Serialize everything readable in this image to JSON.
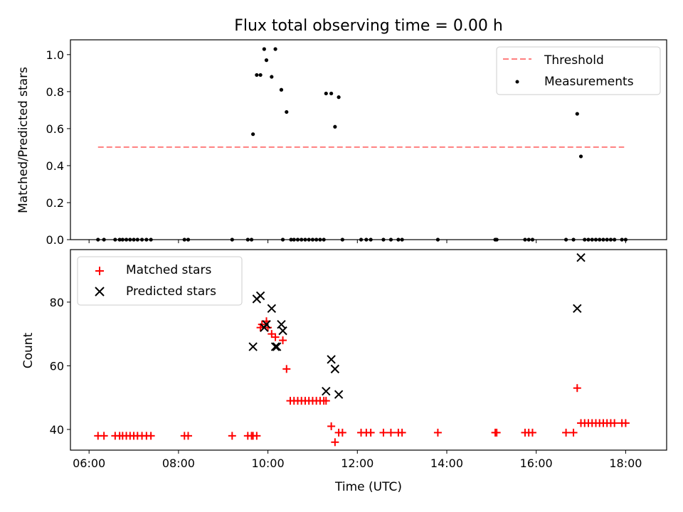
{
  "chart_data": [
    {
      "type": "scatter",
      "title": "Flux total observing time = 0.00 h",
      "xlabel": "",
      "ylabel": "Matched/Predicted stars",
      "xlim": [
        "05:35",
        "18:55"
      ],
      "ylim": [
        0.0,
        1.08
      ],
      "yticks": [
        0.0,
        0.2,
        0.4,
        0.6,
        0.8,
        1.0
      ],
      "ytick_labels": [
        "0.0",
        "0.2",
        "0.4",
        "0.6",
        "0.8",
        "1.0"
      ],
      "grid": false,
      "legend_position": "top-right",
      "series": [
        {
          "name": "Threshold",
          "kind": "line",
          "style": "dashed",
          "color": "#ff7f7f",
          "x": [
            "06:12",
            "17:58"
          ],
          "y": [
            0.5,
            0.5
          ]
        },
        {
          "name": "Measurements",
          "kind": "scatter",
          "marker": "dot",
          "color": "#000000",
          "x": [
            "06:12",
            "06:20",
            "06:35",
            "06:41",
            "06:45",
            "06:50",
            "06:55",
            "07:00",
            "07:05",
            "07:11",
            "07:17",
            "07:23",
            "08:08",
            "08:13",
            "09:12",
            "09:33",
            "09:38",
            "09:40",
            "09:45",
            "09:50",
            "09:55",
            "09:58",
            "10:05",
            "10:10",
            "10:18",
            "10:20",
            "10:25",
            "10:31",
            "10:35",
            "10:40",
            "10:45",
            "10:50",
            "10:55",
            "11:00",
            "11:05",
            "11:10",
            "11:15",
            "11:18",
            "11:25",
            "11:30",
            "11:35",
            "11:40",
            "12:05",
            "12:12",
            "12:18",
            "12:35",
            "12:45",
            "12:55",
            "13:00",
            "13:48",
            "15:05",
            "15:07",
            "15:45",
            "15:50",
            "15:55",
            "16:40",
            "16:50",
            "16:55",
            "17:00",
            "17:05",
            "17:10",
            "17:15",
            "17:20",
            "17:25",
            "17:30",
            "17:35",
            "17:40",
            "17:45",
            "17:55",
            "18:00"
          ],
          "y": [
            0,
            0,
            0,
            0,
            0,
            0,
            0,
            0,
            0,
            0,
            0,
            0,
            0,
            0,
            0,
            0,
            0,
            0.57,
            0.89,
            0.89,
            1.03,
            0.97,
            0.88,
            1.03,
            0.81,
            0,
            0.69,
            0,
            0,
            0,
            0,
            0,
            0,
            0,
            0,
            0,
            0,
            0.79,
            0.79,
            0.61,
            0.77,
            0,
            0,
            0,
            0,
            0,
            0,
            0,
            0,
            0,
            0,
            0,
            0,
            0,
            0,
            0,
            0,
            0.68,
            0.45,
            0,
            0,
            0,
            0,
            0,
            0,
            0,
            0,
            0,
            0,
            0
          ]
        }
      ]
    },
    {
      "type": "scatter",
      "title": "",
      "xlabel": "Time (UTC)",
      "ylabel": "Count",
      "xlim": [
        "05:35",
        "18:55"
      ],
      "ylim": [
        33.5,
        96.5
      ],
      "xticks": [
        "06:00",
        "08:00",
        "10:00",
        "12:00",
        "14:00",
        "16:00",
        "18:00"
      ],
      "yticks": [
        40,
        60,
        80
      ],
      "ytick_labels": [
        "40",
        "60",
        "80"
      ],
      "grid": false,
      "legend_position": "top-left",
      "series": [
        {
          "name": "Matched stars",
          "kind": "scatter",
          "marker": "plus",
          "color": "#ff0000",
          "x": [
            "06:12",
            "06:20",
            "06:35",
            "06:41",
            "06:45",
            "06:50",
            "06:55",
            "07:00",
            "07:05",
            "07:11",
            "07:17",
            "07:23",
            "08:08",
            "08:13",
            "09:12",
            "09:33",
            "09:38",
            "09:40",
            "09:45",
            "09:50",
            "09:52",
            "09:58",
            "10:00",
            "10:05",
            "10:10",
            "10:20",
            "10:25",
            "10:30",
            "10:35",
            "10:40",
            "10:45",
            "10:50",
            "10:55",
            "11:00",
            "11:05",
            "11:10",
            "11:15",
            "11:18",
            "11:25",
            "11:30",
            "11:35",
            "11:40",
            "12:05",
            "12:12",
            "12:18",
            "12:35",
            "12:45",
            "12:55",
            "13:00",
            "13:48",
            "15:05",
            "15:07",
            "15:45",
            "15:50",
            "15:55",
            "16:40",
            "16:50",
            "16:55",
            "17:00",
            "17:05",
            "17:10",
            "17:15",
            "17:20",
            "17:25",
            "17:30",
            "17:35",
            "17:40",
            "17:45",
            "17:55",
            "18:00"
          ],
          "y": [
            38,
            38,
            38,
            38,
            38,
            38,
            38,
            38,
            38,
            38,
            38,
            38,
            38,
            38,
            38,
            38,
            38,
            38,
            38,
            72,
            73,
            74,
            72,
            70,
            69,
            68,
            59,
            49,
            49,
            49,
            49,
            49,
            49,
            49,
            49,
            49,
            49,
            49,
            41,
            36,
            39,
            39,
            39,
            39,
            39,
            39,
            39,
            39,
            39,
            39,
            39,
            39,
            39,
            39,
            39,
            39,
            39,
            53,
            42,
            42,
            42,
            42,
            42,
            42,
            42,
            42,
            42,
            42,
            42,
            42
          ]
        },
        {
          "name": "Predicted stars",
          "kind": "scatter",
          "marker": "x",
          "color": "#000000",
          "x": [
            "09:40",
            "09:45",
            "09:50",
            "09:55",
            "09:58",
            "10:05",
            "10:10",
            "10:12",
            "10:18",
            "10:20",
            "11:18",
            "11:25",
            "11:30",
            "11:35",
            "16:55",
            "17:00"
          ],
          "y": [
            66,
            81,
            82,
            72,
            73,
            78,
            66,
            66,
            73,
            71,
            52,
            62,
            59,
            51,
            78,
            94
          ]
        }
      ]
    }
  ]
}
